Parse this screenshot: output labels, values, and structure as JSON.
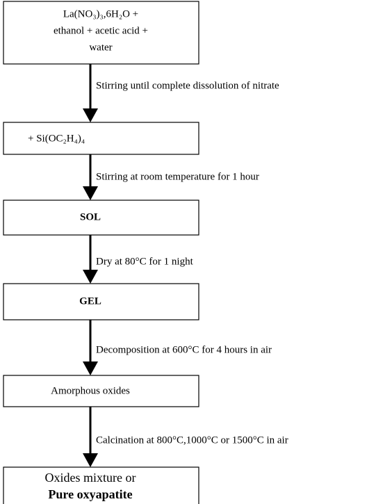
{
  "nodes": [
    {
      "lines": [
        "La(NO₃)₃,6H₂O +",
        "ethanol + acetic acid +",
        "water"
      ]
    },
    {
      "lines": [
        "+ Si(OC₂H₄)₄"
      ]
    },
    {
      "lines": [
        "SOL"
      ]
    },
    {
      "lines": [
        "GEL"
      ]
    },
    {
      "lines": [
        "Amorphous oxides"
      ]
    },
    {
      "lines": [
        "Oxides mixture or",
        "Pure oxyapatite"
      ]
    }
  ],
  "edges": [
    {
      "label": "Stirring until complete dissolution of nitrate"
    },
    {
      "label": "Stirring at room temperature for 1 hour"
    },
    {
      "label": "Dry at 80°C for 1 night"
    },
    {
      "label": "Decomposition at 600°C for 4 hours in air"
    },
    {
      "label": "Calcination at 800°C,1000°C or 1500°C in air"
    }
  ]
}
